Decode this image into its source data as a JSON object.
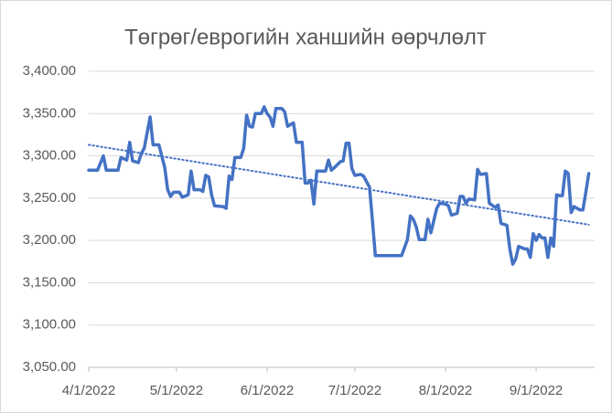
{
  "chart_data": {
    "type": "line",
    "title": "Төгрөг/еврогийн ханшийн өөрчлөлт",
    "x": [
      "2022-04-01",
      "2022-04-04",
      "2022-04-06",
      "2022-04-07",
      "2022-04-09",
      "2022-04-11",
      "2022-04-12",
      "2022-04-14",
      "2022-04-15",
      "2022-04-16",
      "2022-04-18",
      "2022-04-19",
      "2022-04-20",
      "2022-04-22",
      "2022-04-23",
      "2022-04-25",
      "2022-04-27",
      "2022-04-28",
      "2022-04-29",
      "2022-04-30",
      "2022-05-02",
      "2022-05-03",
      "2022-05-05",
      "2022-05-06",
      "2022-05-07",
      "2022-05-09",
      "2022-05-10",
      "2022-05-11",
      "2022-05-12",
      "2022-05-13",
      "2022-05-14",
      "2022-05-17",
      "2022-05-18",
      "2022-05-19",
      "2022-05-20",
      "2022-05-21",
      "2022-05-23",
      "2022-05-24",
      "2022-05-25",
      "2022-05-26",
      "2022-05-27",
      "2022-05-28",
      "2022-05-30",
      "2022-05-31",
      "2022-06-01",
      "2022-06-02",
      "2022-06-03",
      "2022-06-04",
      "2022-06-06",
      "2022-06-07",
      "2022-06-08",
      "2022-06-10",
      "2022-06-11",
      "2022-06-13",
      "2022-06-14",
      "2022-06-15",
      "2022-06-16",
      "2022-06-17",
      "2022-06-18",
      "2022-06-21",
      "2022-06-22",
      "2022-06-23",
      "2022-06-24",
      "2022-06-26",
      "2022-06-27",
      "2022-06-28",
      "2022-06-29",
      "2022-06-30",
      "2022-07-01",
      "2022-07-03",
      "2022-07-04",
      "2022-07-06",
      "2022-07-07",
      "2022-07-08",
      "2022-07-12",
      "2022-07-17",
      "2022-07-19",
      "2022-07-20",
      "2022-07-21",
      "2022-07-22",
      "2022-07-23",
      "2022-07-25",
      "2022-07-26",
      "2022-07-27",
      "2022-07-29",
      "2022-07-30",
      "2022-08-01",
      "2022-08-02",
      "2022-08-03",
      "2022-08-05",
      "2022-08-06",
      "2022-08-07",
      "2022-08-08",
      "2022-08-09",
      "2022-08-11",
      "2022-08-12",
      "2022-08-13",
      "2022-08-15",
      "2022-08-16",
      "2022-08-18",
      "2022-08-19",
      "2022-08-20",
      "2022-08-22",
      "2022-08-23",
      "2022-08-24",
      "2022-08-25",
      "2022-08-26",
      "2022-08-28",
      "2022-08-29",
      "2022-08-30",
      "2022-08-31",
      "2022-09-01",
      "2022-09-02",
      "2022-09-03",
      "2022-09-04",
      "2022-09-05",
      "2022-09-06",
      "2022-09-07",
      "2022-09-08",
      "2022-09-09",
      "2022-09-10",
      "2022-09-11",
      "2022-09-12",
      "2022-09-13",
      "2022-09-14",
      "2022-09-16",
      "2022-09-17",
      "2022-09-18",
      "2022-09-19"
    ],
    "values": [
      3283,
      3283,
      3300,
      3283,
      3283,
      3283,
      3298,
      3295,
      3316,
      3294,
      3292,
      3303,
      3309,
      3346,
      3313,
      3313,
      3286,
      3260,
      3252,
      3257,
      3257,
      3251,
      3254,
      3282,
      3260,
      3260,
      3258,
      3277,
      3275,
      3254,
      3241,
      3240,
      3238,
      3276,
      3272,
      3298,
      3298,
      3309,
      3348,
      3335,
      3334,
      3350,
      3350,
      3358,
      3350,
      3346,
      3335,
      3356,
      3356,
      3352,
      3335,
      3339,
      3316,
      3316,
      3268,
      3268,
      3271,
      3243,
      3282,
      3282,
      3295,
      3283,
      3286,
      3293,
      3294,
      3315,
      3315,
      3285,
      3277,
      3278,
      3276,
      3263,
      3224,
      3182,
      3182,
      3182,
      3201,
      3229,
      3225,
      3216,
      3201,
      3201,
      3225,
      3209,
      3238,
      3244,
      3243,
      3241,
      3230,
      3232,
      3252,
      3252,
      3244,
      3249,
      3248,
      3284,
      3278,
      3279,
      3244,
      3239,
      3242,
      3220,
      3218,
      3190,
      3172,
      3178,
      3193,
      3190,
      3190,
      3180,
      3208,
      3200,
      3207,
      3203,
      3203,
      3180,
      3203,
      3193,
      3254,
      3253,
      3253,
      3282,
      3279,
      3233,
      3240,
      3236,
      3236,
      3257,
      3279
    ],
    "color": "#4472c4",
    "trendline": "linear",
    "xlim": [
      "2022-04-01",
      "2022-09-21"
    ],
    "xticks": [
      {
        "value": "2022-04-01",
        "label": "4/1/2022"
      },
      {
        "value": "2022-05-01",
        "label": "5/1/2022"
      },
      {
        "value": "2022-06-01",
        "label": "6/1/2022"
      },
      {
        "value": "2022-07-01",
        "label": "7/1/2022"
      },
      {
        "value": "2022-08-01",
        "label": "8/1/2022"
      },
      {
        "value": "2022-09-01",
        "label": "9/1/2022"
      }
    ],
    "ylim": [
      3050,
      3400
    ],
    "yticks": [
      {
        "value": 3050,
        "label": "3,050.00"
      },
      {
        "value": 3100,
        "label": "3,100.00"
      },
      {
        "value": 3150,
        "label": "3,150.00"
      },
      {
        "value": 3200,
        "label": "3,200.00"
      },
      {
        "value": 3250,
        "label": "3,250.00"
      },
      {
        "value": 3300,
        "label": "3,300.00"
      },
      {
        "value": 3350,
        "label": "3,350.00"
      },
      {
        "value": 3400,
        "label": "3,400.00"
      }
    ],
    "grid": true
  }
}
